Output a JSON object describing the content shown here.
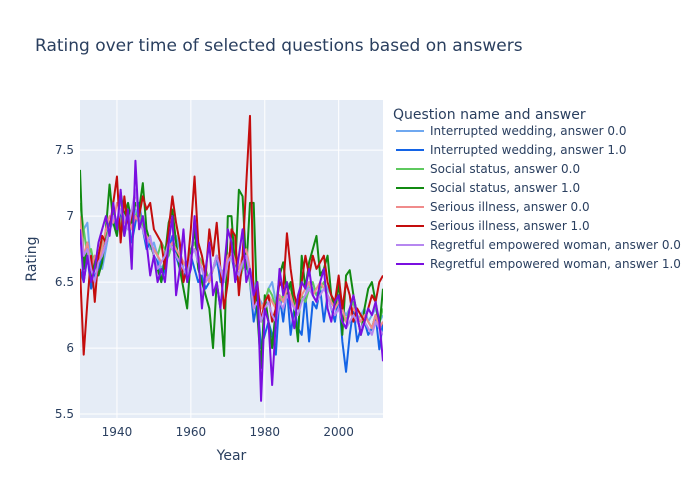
{
  "chart_data": {
    "type": "line",
    "title": "Rating over time of selected questions based on answers",
    "xlabel": "Year",
    "ylabel": "Rating",
    "xlim": [
      1930,
      2012
    ],
    "ylim": [
      5.47,
      7.88
    ],
    "xticks": [
      1940,
      1960,
      1980,
      2000
    ],
    "yticks": [
      5.5,
      6,
      6.5,
      7,
      7.5
    ],
    "xtick_labels": [
      "1940",
      "1960",
      "1980",
      "2000"
    ],
    "ytick_labels": [
      "5.5",
      "6",
      "6.5",
      "7",
      "7.5"
    ],
    "grid": true,
    "legend_title": "Question name and answer",
    "legend_position": "right",
    "x_start": 1930,
    "x_end": 2012,
    "series": [
      {
        "name": "Interrupted wedding, answer 0.0",
        "color": "#6fa8f0",
        "values": [
          6.8,
          6.9,
          6.95,
          6.6,
          6.5,
          6.65,
          6.6,
          6.75,
          6.9,
          6.95,
          6.85,
          7.0,
          6.95,
          7.1,
          6.9,
          7.05,
          6.95,
          7.0,
          6.85,
          6.75,
          6.8,
          6.7,
          6.6,
          6.65,
          6.7,
          6.8,
          6.85,
          6.75,
          6.6,
          6.55,
          6.7,
          6.75,
          6.65,
          6.6,
          6.5,
          6.55,
          6.6,
          6.65,
          6.55,
          6.6,
          6.7,
          6.75,
          6.6,
          6.55,
          6.65,
          6.7,
          6.6,
          6.5,
          6.4,
          6.35,
          6.3,
          6.45,
          6.5,
          6.35,
          6.3,
          6.4,
          6.45,
          6.5,
          6.4,
          6.3,
          6.35,
          6.4,
          6.5,
          6.45,
          6.4,
          6.45,
          6.5,
          6.45,
          6.4,
          6.35,
          6.4,
          6.3,
          6.25,
          6.3,
          6.35,
          6.2,
          6.25,
          6.3,
          6.2,
          6.25,
          6.3,
          6.2,
          6.25
        ]
      },
      {
        "name": "Interrupted wedding, answer 1.0",
        "color": "#1464e6",
        "values": [
          6.6,
          6.5,
          6.7,
          6.45,
          6.55,
          6.6,
          6.7,
          6.8,
          6.95,
          7.0,
          6.9,
          7.05,
          6.85,
          7.0,
          6.8,
          6.95,
          7.1,
          6.9,
          6.75,
          6.8,
          6.7,
          6.65,
          6.5,
          6.6,
          6.75,
          6.85,
          6.7,
          6.6,
          6.5,
          6.65,
          6.7,
          6.6,
          6.5,
          6.55,
          6.45,
          6.5,
          6.6,
          6.7,
          6.5,
          6.55,
          6.65,
          6.7,
          6.55,
          6.5,
          6.6,
          6.65,
          6.5,
          6.2,
          6.35,
          6.0,
          6.1,
          6.2,
          6.1,
          5.95,
          6.4,
          6.2,
          6.45,
          6.1,
          6.3,
          6.15,
          6.1,
          6.4,
          6.05,
          6.35,
          6.3,
          6.45,
          6.2,
          6.4,
          6.3,
          6.2,
          6.4,
          6.05,
          5.82,
          6.1,
          6.3,
          6.05,
          6.15,
          6.2,
          6.1,
          6.15,
          6.25,
          5.99,
          6.2
        ]
      },
      {
        "name": "Social status, answer 0.0",
        "color": "#5ec95e",
        "values": [
          7.1,
          6.9,
          6.7,
          6.75,
          6.6,
          6.7,
          6.8,
          6.85,
          6.9,
          7.05,
          6.95,
          6.9,
          7.1,
          7.0,
          6.95,
          7.0,
          7.05,
          6.9,
          6.85,
          6.8,
          6.75,
          6.7,
          6.8,
          6.75,
          6.7,
          6.8,
          6.75,
          6.7,
          6.65,
          6.6,
          6.75,
          6.8,
          6.7,
          6.65,
          6.6,
          6.5,
          6.6,
          6.7,
          6.6,
          6.55,
          6.65,
          6.7,
          6.6,
          6.5,
          6.6,
          6.7,
          6.5,
          6.3,
          6.4,
          6.3,
          6.35,
          6.45,
          6.4,
          6.3,
          6.35,
          6.4,
          6.5,
          6.45,
          6.35,
          6.3,
          6.4,
          6.35,
          6.45,
          6.5,
          6.4,
          6.45,
          6.5,
          6.4,
          6.35,
          6.3,
          6.4,
          6.3,
          6.2,
          6.3,
          6.35,
          6.25,
          6.2,
          6.25,
          6.2,
          6.15,
          6.25,
          6.2,
          6.3
        ]
      },
      {
        "name": "Social status, answer 1.0",
        "color": "#118a11",
        "values": [
          7.35,
          6.6,
          6.8,
          6.5,
          6.7,
          6.55,
          6.65,
          6.9,
          7.24,
          6.95,
          6.85,
          7.18,
          7.0,
          7.1,
          6.95,
          7.1,
          7.05,
          7.25,
          6.9,
          6.8,
          6.7,
          6.6,
          6.5,
          6.7,
          6.95,
          7.05,
          6.8,
          6.6,
          6.45,
          6.3,
          6.7,
          6.9,
          6.6,
          6.5,
          6.4,
          6.3,
          6.0,
          6.5,
          6.3,
          5.94,
          7.0,
          7.0,
          6.6,
          7.2,
          7.15,
          6.6,
          7.1,
          7.1,
          6.25,
          5.85,
          6.4,
          6.2,
          6.0,
          6.3,
          6.55,
          6.65,
          6.4,
          6.5,
          6.3,
          6.05,
          6.7,
          6.45,
          6.65,
          6.75,
          6.85,
          6.55,
          6.6,
          6.7,
          6.4,
          6.3,
          6.5,
          6.1,
          6.55,
          6.59,
          6.4,
          6.25,
          6.1,
          6.3,
          6.45,
          6.5,
          6.35,
          6.15,
          6.45
        ]
      },
      {
        "name": "Serious illness, answer 0.0",
        "color": "#f08b8b",
        "values": [
          7.0,
          6.7,
          6.8,
          6.6,
          6.7,
          6.65,
          6.75,
          6.9,
          7.0,
          6.95,
          7.1,
          7.05,
          6.95,
          7.0,
          6.9,
          7.0,
          6.95,
          6.9,
          6.85,
          6.8,
          6.75,
          6.7,
          6.65,
          6.7,
          6.75,
          6.8,
          6.75,
          6.7,
          6.65,
          6.6,
          6.7,
          6.75,
          6.7,
          6.6,
          6.55,
          6.5,
          6.6,
          6.7,
          6.6,
          6.55,
          6.7,
          6.75,
          6.65,
          6.6,
          6.7,
          6.75,
          6.6,
          6.4,
          6.45,
          6.3,
          6.35,
          6.4,
          6.35,
          6.3,
          6.4,
          6.35,
          6.45,
          6.4,
          6.3,
          6.35,
          6.4,
          6.45,
          6.5,
          6.4,
          6.45,
          6.5,
          6.45,
          6.4,
          6.35,
          6.3,
          6.35,
          6.3,
          6.2,
          6.25,
          6.3,
          6.25,
          6.2,
          6.25,
          6.2,
          6.15,
          6.25,
          6.15,
          6.2
        ]
      },
      {
        "name": "Serious illness, answer 1.0",
        "color": "#c40d0d",
        "values": [
          6.6,
          5.95,
          6.35,
          6.7,
          6.35,
          6.7,
          6.85,
          6.8,
          6.9,
          7.1,
          7.3,
          6.8,
          7.15,
          6.9,
          7.0,
          7.2,
          7.0,
          7.15,
          7.05,
          7.1,
          6.9,
          6.85,
          6.8,
          6.6,
          6.9,
          7.15,
          6.95,
          6.8,
          6.5,
          6.6,
          6.9,
          7.3,
          6.8,
          6.7,
          6.55,
          6.9,
          6.7,
          6.95,
          6.6,
          6.3,
          6.5,
          6.9,
          6.85,
          6.4,
          6.7,
          7.25,
          7.76,
          6.3,
          6.5,
          6.2,
          6.35,
          6.4,
          6.2,
          6.3,
          6.5,
          6.45,
          6.87,
          6.6,
          6.4,
          6.3,
          6.5,
          6.7,
          6.55,
          6.7,
          6.6,
          6.65,
          6.7,
          6.5,
          6.4,
          6.35,
          6.55,
          6.3,
          6.5,
          6.4,
          6.2,
          6.3,
          6.25,
          6.2,
          6.3,
          6.4,
          6.35,
          6.5,
          6.55
        ]
      },
      {
        "name": "Regretful empowered woman, answer 0.0",
        "color": "#b687f0",
        "values": [
          6.9,
          6.7,
          6.75,
          6.6,
          6.5,
          6.65,
          6.7,
          6.8,
          6.9,
          7.0,
          6.95,
          7.05,
          7.0,
          6.9,
          7.05,
          7.2,
          6.95,
          6.9,
          6.8,
          6.85,
          6.7,
          6.6,
          6.65,
          6.7,
          6.8,
          6.75,
          6.7,
          6.65,
          6.6,
          6.55,
          6.7,
          6.75,
          6.65,
          6.6,
          6.5,
          6.55,
          6.6,
          6.7,
          6.6,
          6.5,
          6.65,
          6.7,
          6.6,
          6.55,
          6.65,
          6.7,
          6.55,
          6.3,
          6.35,
          6.2,
          6.3,
          6.35,
          6.25,
          6.2,
          6.35,
          6.3,
          6.4,
          6.35,
          6.3,
          6.25,
          6.35,
          6.4,
          6.45,
          6.4,
          6.35,
          6.4,
          6.45,
          6.4,
          6.3,
          6.25,
          6.3,
          6.2,
          6.15,
          6.2,
          6.25,
          6.2,
          6.15,
          6.2,
          6.15,
          6.1,
          6.2,
          6.15,
          6.1
        ]
      },
      {
        "name": "Regretful empowered woman, answer 1.0",
        "color": "#7a0fe0",
        "values": [
          6.9,
          6.5,
          6.7,
          6.5,
          6.6,
          6.8,
          6.9,
          7.0,
          6.85,
          7.1,
          6.9,
          7.2,
          6.85,
          7.05,
          6.6,
          7.42,
          6.9,
          7.0,
          6.8,
          6.55,
          6.7,
          6.5,
          6.6,
          6.5,
          6.8,
          7.0,
          6.4,
          6.6,
          6.9,
          6.5,
          6.6,
          7.0,
          6.7,
          6.3,
          6.6,
          6.8,
          6.4,
          6.5,
          6.3,
          6.6,
          6.9,
          6.8,
          6.5,
          6.7,
          6.9,
          6.5,
          6.6,
          6.4,
          6.5,
          5.6,
          6.3,
          6.2,
          5.72,
          6.2,
          6.6,
          6.4,
          6.5,
          6.3,
          6.15,
          6.4,
          6.5,
          6.45,
          6.6,
          6.4,
          6.35,
          6.5,
          6.6,
          6.3,
          6.2,
          6.35,
          6.4,
          6.2,
          6.15,
          6.3,
          6.4,
          6.25,
          6.1,
          6.2,
          6.3,
          6.25,
          6.35,
          6.2,
          5.9
        ]
      }
    ]
  }
}
